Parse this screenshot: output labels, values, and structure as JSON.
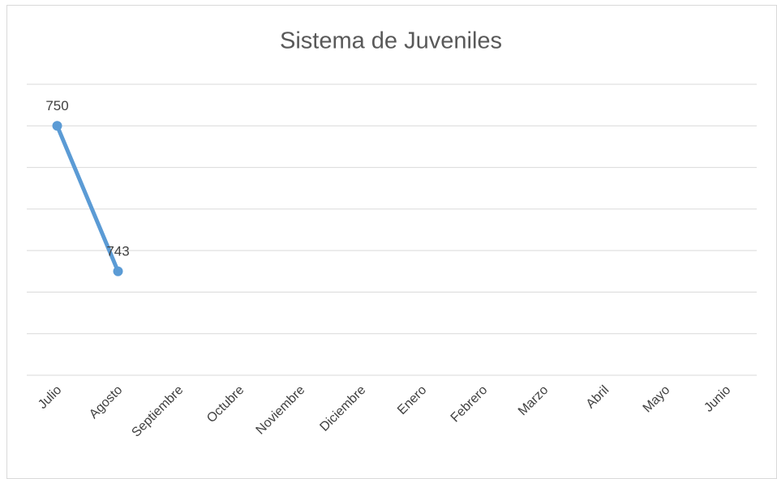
{
  "chart_data": {
    "type": "line",
    "title": "Sistema de Juveniles",
    "categories": [
      "Julio",
      "Agosto",
      "Septiembre",
      "Octubre",
      "Noviembre",
      "Diciembre",
      "Enero",
      "Febrero",
      "Marzo",
      "Abril",
      "Mayo",
      "Junio"
    ],
    "series": [
      {
        "name": "Sistema de Juveniles",
        "color": "#5b9bd5",
        "values": [
          750,
          743,
          null,
          null,
          null,
          null,
          null,
          null,
          null,
          null,
          null,
          null
        ]
      }
    ],
    "ylim": [
      738,
      752
    ],
    "yticks": [
      738,
      740,
      742,
      744,
      746,
      748,
      750,
      752
    ],
    "grid": true,
    "data_labels": true
  }
}
